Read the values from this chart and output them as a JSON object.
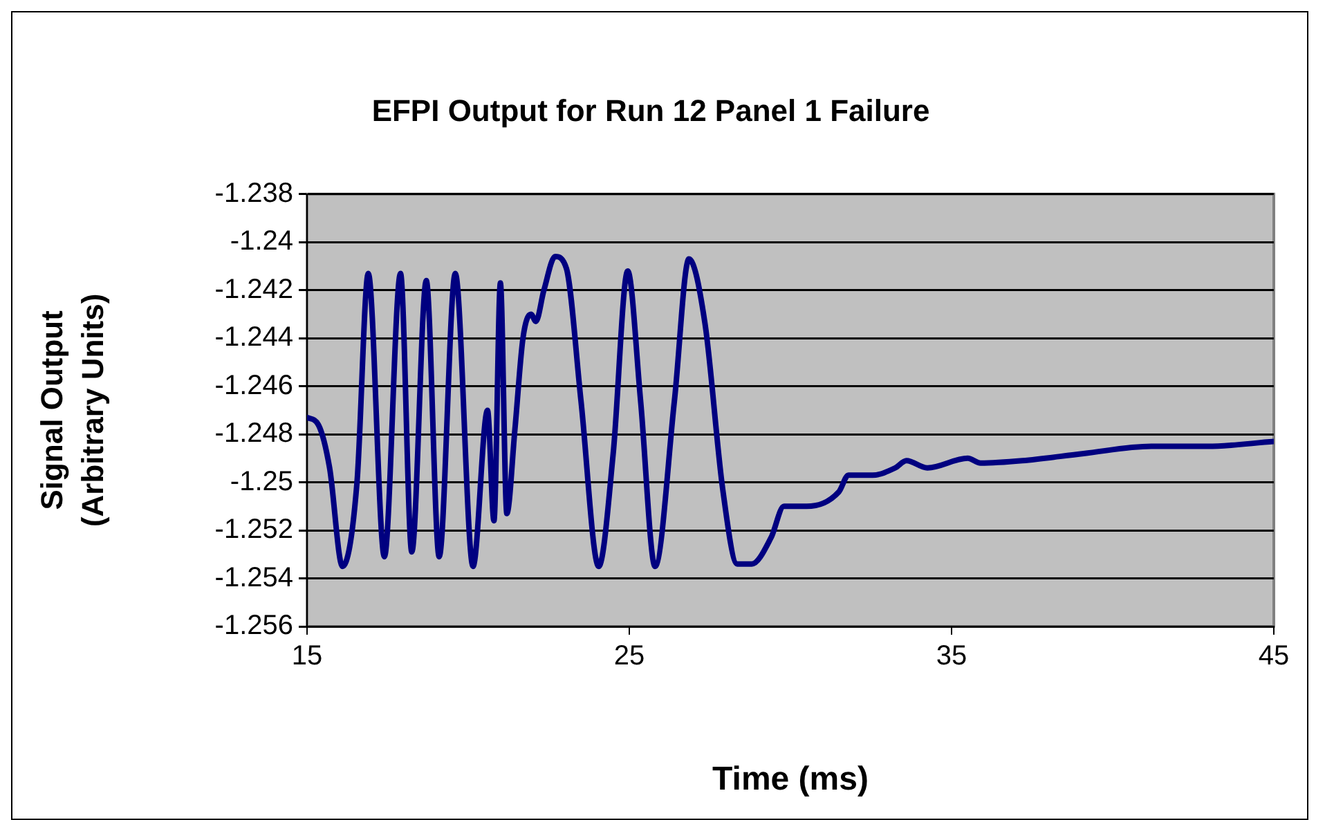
{
  "chart_data": {
    "type": "line",
    "title": "EFPI Output for Run 12 Panel 1 Failure",
    "xlabel": "Time (ms)",
    "ylabel": "Signal Output (Arbitrary Units)",
    "xlim": [
      15,
      45
    ],
    "xticks": [
      15,
      25,
      35,
      45
    ],
    "ylim": [
      -1.256,
      -1.238
    ],
    "yticks": [
      -1.256,
      -1.254,
      -1.252,
      -1.25,
      -1.248,
      -1.246,
      -1.244,
      -1.242,
      -1.24,
      -1.238
    ],
    "grid": "y",
    "legend": false,
    "marker": "none",
    "line_style": "solid",
    "series": [
      {
        "color": "#000080",
        "x": [
          15.0,
          15.35,
          15.7,
          16.1,
          16.55,
          16.9,
          17.4,
          17.9,
          18.25,
          18.7,
          19.1,
          19.6,
          20.15,
          20.6,
          20.8,
          21.0,
          21.2,
          21.45,
          21.7,
          21.95,
          22.1,
          22.35,
          22.7,
          23.05,
          23.5,
          24.05,
          24.5,
          24.95,
          25.35,
          25.8,
          26.4,
          26.85,
          27.35,
          27.9,
          28.35,
          28.8,
          29.4,
          29.8,
          30.5,
          31.5,
          31.8,
          32.55,
          33.25,
          33.6,
          34.25,
          35.5,
          35.9,
          37.2,
          39.1,
          41.2,
          42.95,
          45.0
        ],
        "values": [
          -1.2473,
          -1.2476,
          -1.2494,
          -1.2535,
          -1.25,
          -1.2413,
          -1.2531,
          -1.2413,
          -1.2529,
          -1.2416,
          -1.2531,
          -1.2413,
          -1.2535,
          -1.247,
          -1.2516,
          -1.2417,
          -1.2513,
          -1.2478,
          -1.244,
          -1.243,
          -1.2433,
          -1.242,
          -1.2406,
          -1.2411,
          -1.2466,
          -1.2535,
          -1.2488,
          -1.2412,
          -1.2466,
          -1.2535,
          -1.2466,
          -1.2407,
          -1.2434,
          -1.2503,
          -1.2534,
          -1.2534,
          -1.2523,
          -1.251,
          -1.251,
          -1.2504,
          -1.2497,
          -1.2497,
          -1.2494,
          -1.2491,
          -1.2494,
          -1.249,
          -1.2492,
          -1.2491,
          -1.2488,
          -1.2485,
          -1.2485,
          -1.2483
        ]
      }
    ]
  }
}
